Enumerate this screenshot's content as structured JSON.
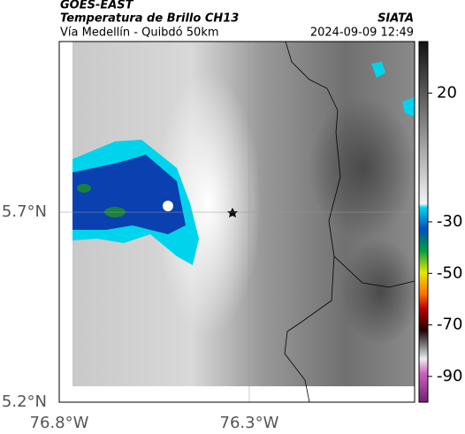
{
  "header": {
    "title": "GOES-EAST",
    "subtitle": "Temperatura de Brillo CH13",
    "source": "SIATA",
    "route": "Vía Medellín - Quibdó 50km",
    "timestamp": "2024-09-09 12:49"
  },
  "map": {
    "xlim": [
      -76.8,
      -75.865
    ],
    "ylim": [
      5.2,
      6.149
    ],
    "xticks": [
      {
        "value": -76.8,
        "label": "76.8°W"
      },
      {
        "value": -76.3,
        "label": "76.3°W"
      }
    ],
    "yticks": [
      {
        "value": 5.2,
        "label": "5.2°N"
      },
      {
        "value": 5.7,
        "label": "5.7°N"
      }
    ]
  },
  "colorbar": {
    "lim": [
      -100,
      40
    ],
    "ticks": [
      20,
      -30,
      -50,
      -70,
      -90
    ]
  }
}
